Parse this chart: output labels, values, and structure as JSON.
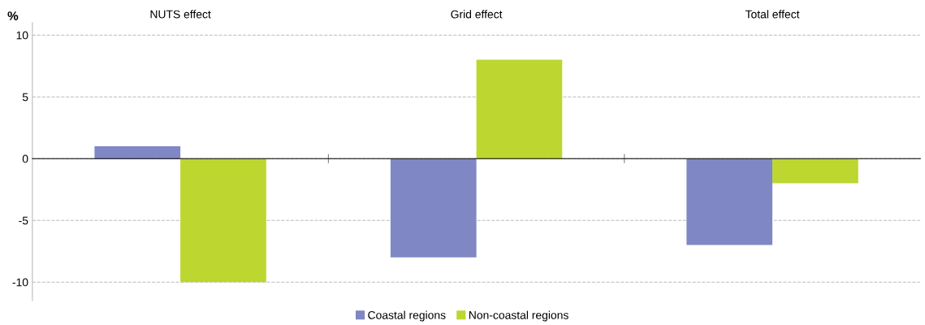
{
  "chart_data": {
    "type": "bar",
    "ylabel": "%",
    "categories": [
      "NUTS effect",
      "Grid effect",
      "Total effect"
    ],
    "series": [
      {
        "name": "Coastal regions",
        "color": "#7f87c4",
        "values": [
          1,
          -8,
          -7
        ]
      },
      {
        "name": "Non-coastal regions",
        "color": "#bdd630",
        "values": [
          -10,
          8,
          -2
        ]
      }
    ],
    "ylim": [
      -11.5,
      11
    ],
    "yticks": [
      -10,
      -5,
      0,
      5,
      10
    ],
    "grid": "y",
    "legend": "bottom"
  }
}
